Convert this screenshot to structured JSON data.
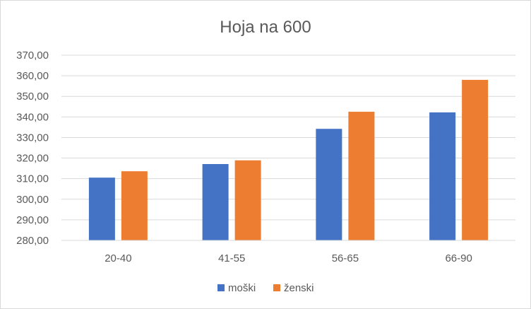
{
  "chart_data": {
    "type": "bar",
    "title": "Hoja na 600",
    "xlabel": "",
    "ylabel": "",
    "categories": [
      "20-40",
      "41-55",
      "56-65",
      "66-90"
    ],
    "series": [
      {
        "name": "moški",
        "values": [
          310.5,
          317.1,
          334.2,
          342.2
        ],
        "color": "#4472c4"
      },
      {
        "name": "ženski",
        "values": [
          313.6,
          318.9,
          342.5,
          358.0
        ],
        "color": "#ed7d31"
      }
    ],
    "ylim": [
      280,
      370
    ],
    "ytick_step": 10,
    "ytick_labels": [
      "280,00",
      "290,00",
      "300,00",
      "310,00",
      "320,00",
      "330,00",
      "340,00",
      "350,00",
      "360,00",
      "370,00"
    ],
    "grid": true,
    "gridline_color": "#d9d9d9",
    "legend_position": "bottom"
  }
}
